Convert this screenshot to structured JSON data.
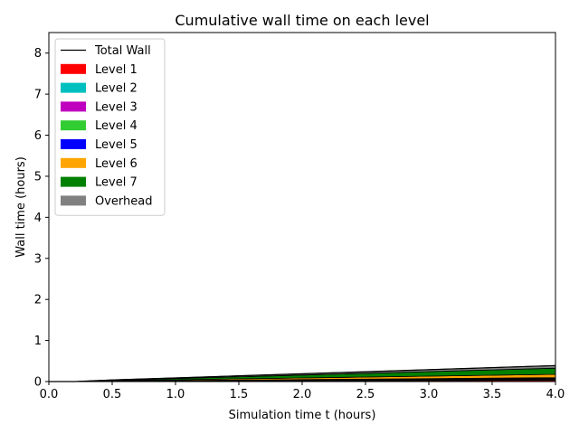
{
  "chart_data": {
    "type": "area",
    "title": "Cumulative wall time on each level",
    "xlabel": "Simulation time t (hours)",
    "ylabel": "Wall time (hours)",
    "xlim": [
      0,
      4
    ],
    "ylim": [
      0,
      8.5
    ],
    "xticks": [
      0.0,
      0.5,
      1.0,
      1.5,
      2.0,
      2.5,
      3.0,
      3.5,
      4.0
    ],
    "xtick_labels": [
      "0.0",
      "0.5",
      "1.0",
      "1.5",
      "2.0",
      "2.5",
      "3.0",
      "3.5",
      "4.0"
    ],
    "yticks": [
      0,
      1,
      2,
      3,
      4,
      5,
      6,
      7,
      8
    ],
    "ytick_labels": [
      "0",
      "1",
      "2",
      "3",
      "4",
      "5",
      "6",
      "7",
      "8"
    ],
    "grid": false,
    "legend_position": "top-left",
    "x": [
      0.0,
      0.2,
      0.5,
      1.0,
      1.5,
      2.0,
      2.5,
      3.0,
      3.5,
      4.0
    ],
    "series": [
      {
        "name": "Level 1",
        "color": "#ff0000",
        "values": [
          0.0,
          0.0,
          0.004,
          0.008,
          0.012,
          0.016,
          0.02,
          0.024,
          0.028,
          0.032
        ]
      },
      {
        "name": "Level 2",
        "color": "#00bfbf",
        "values": [
          0.0,
          0.0,
          0.002,
          0.004,
          0.006,
          0.008,
          0.01,
          0.012,
          0.014,
          0.016
        ]
      },
      {
        "name": "Level 3",
        "color": "#bf00bf",
        "values": [
          0.0,
          0.0,
          0.002,
          0.004,
          0.006,
          0.008,
          0.01,
          0.012,
          0.014,
          0.016
        ]
      },
      {
        "name": "Level 4",
        "color": "#32cd32",
        "values": [
          0.0,
          0.0,
          0.002,
          0.004,
          0.006,
          0.008,
          0.01,
          0.012,
          0.014,
          0.016
        ]
      },
      {
        "name": "Level 5",
        "color": "#0000ff",
        "values": [
          0.0,
          0.0,
          0.002,
          0.004,
          0.006,
          0.008,
          0.01,
          0.012,
          0.014,
          0.016
        ]
      },
      {
        "name": "Level 6",
        "color": "#ffa500",
        "values": [
          0.0,
          0.0,
          0.01,
          0.02,
          0.03,
          0.04,
          0.05,
          0.06,
          0.07,
          0.08
        ]
      },
      {
        "name": "Level 7",
        "color": "#008000",
        "values": [
          0.0,
          0.0,
          0.01,
          0.03,
          0.05,
          0.07,
          0.09,
          0.11,
          0.13,
          0.15
        ]
      },
      {
        "name": "Overhead",
        "color": "#808080",
        "values": [
          0.0,
          0.0,
          0.008,
          0.016,
          0.024,
          0.032,
          0.04,
          0.048,
          0.056,
          0.064
        ]
      }
    ],
    "total_wall": {
      "name": "Total Wall",
      "color": "#000000",
      "values": [
        0.0,
        0.0,
        0.04,
        0.09,
        0.14,
        0.19,
        0.24,
        0.29,
        0.34,
        0.39
      ]
    }
  }
}
